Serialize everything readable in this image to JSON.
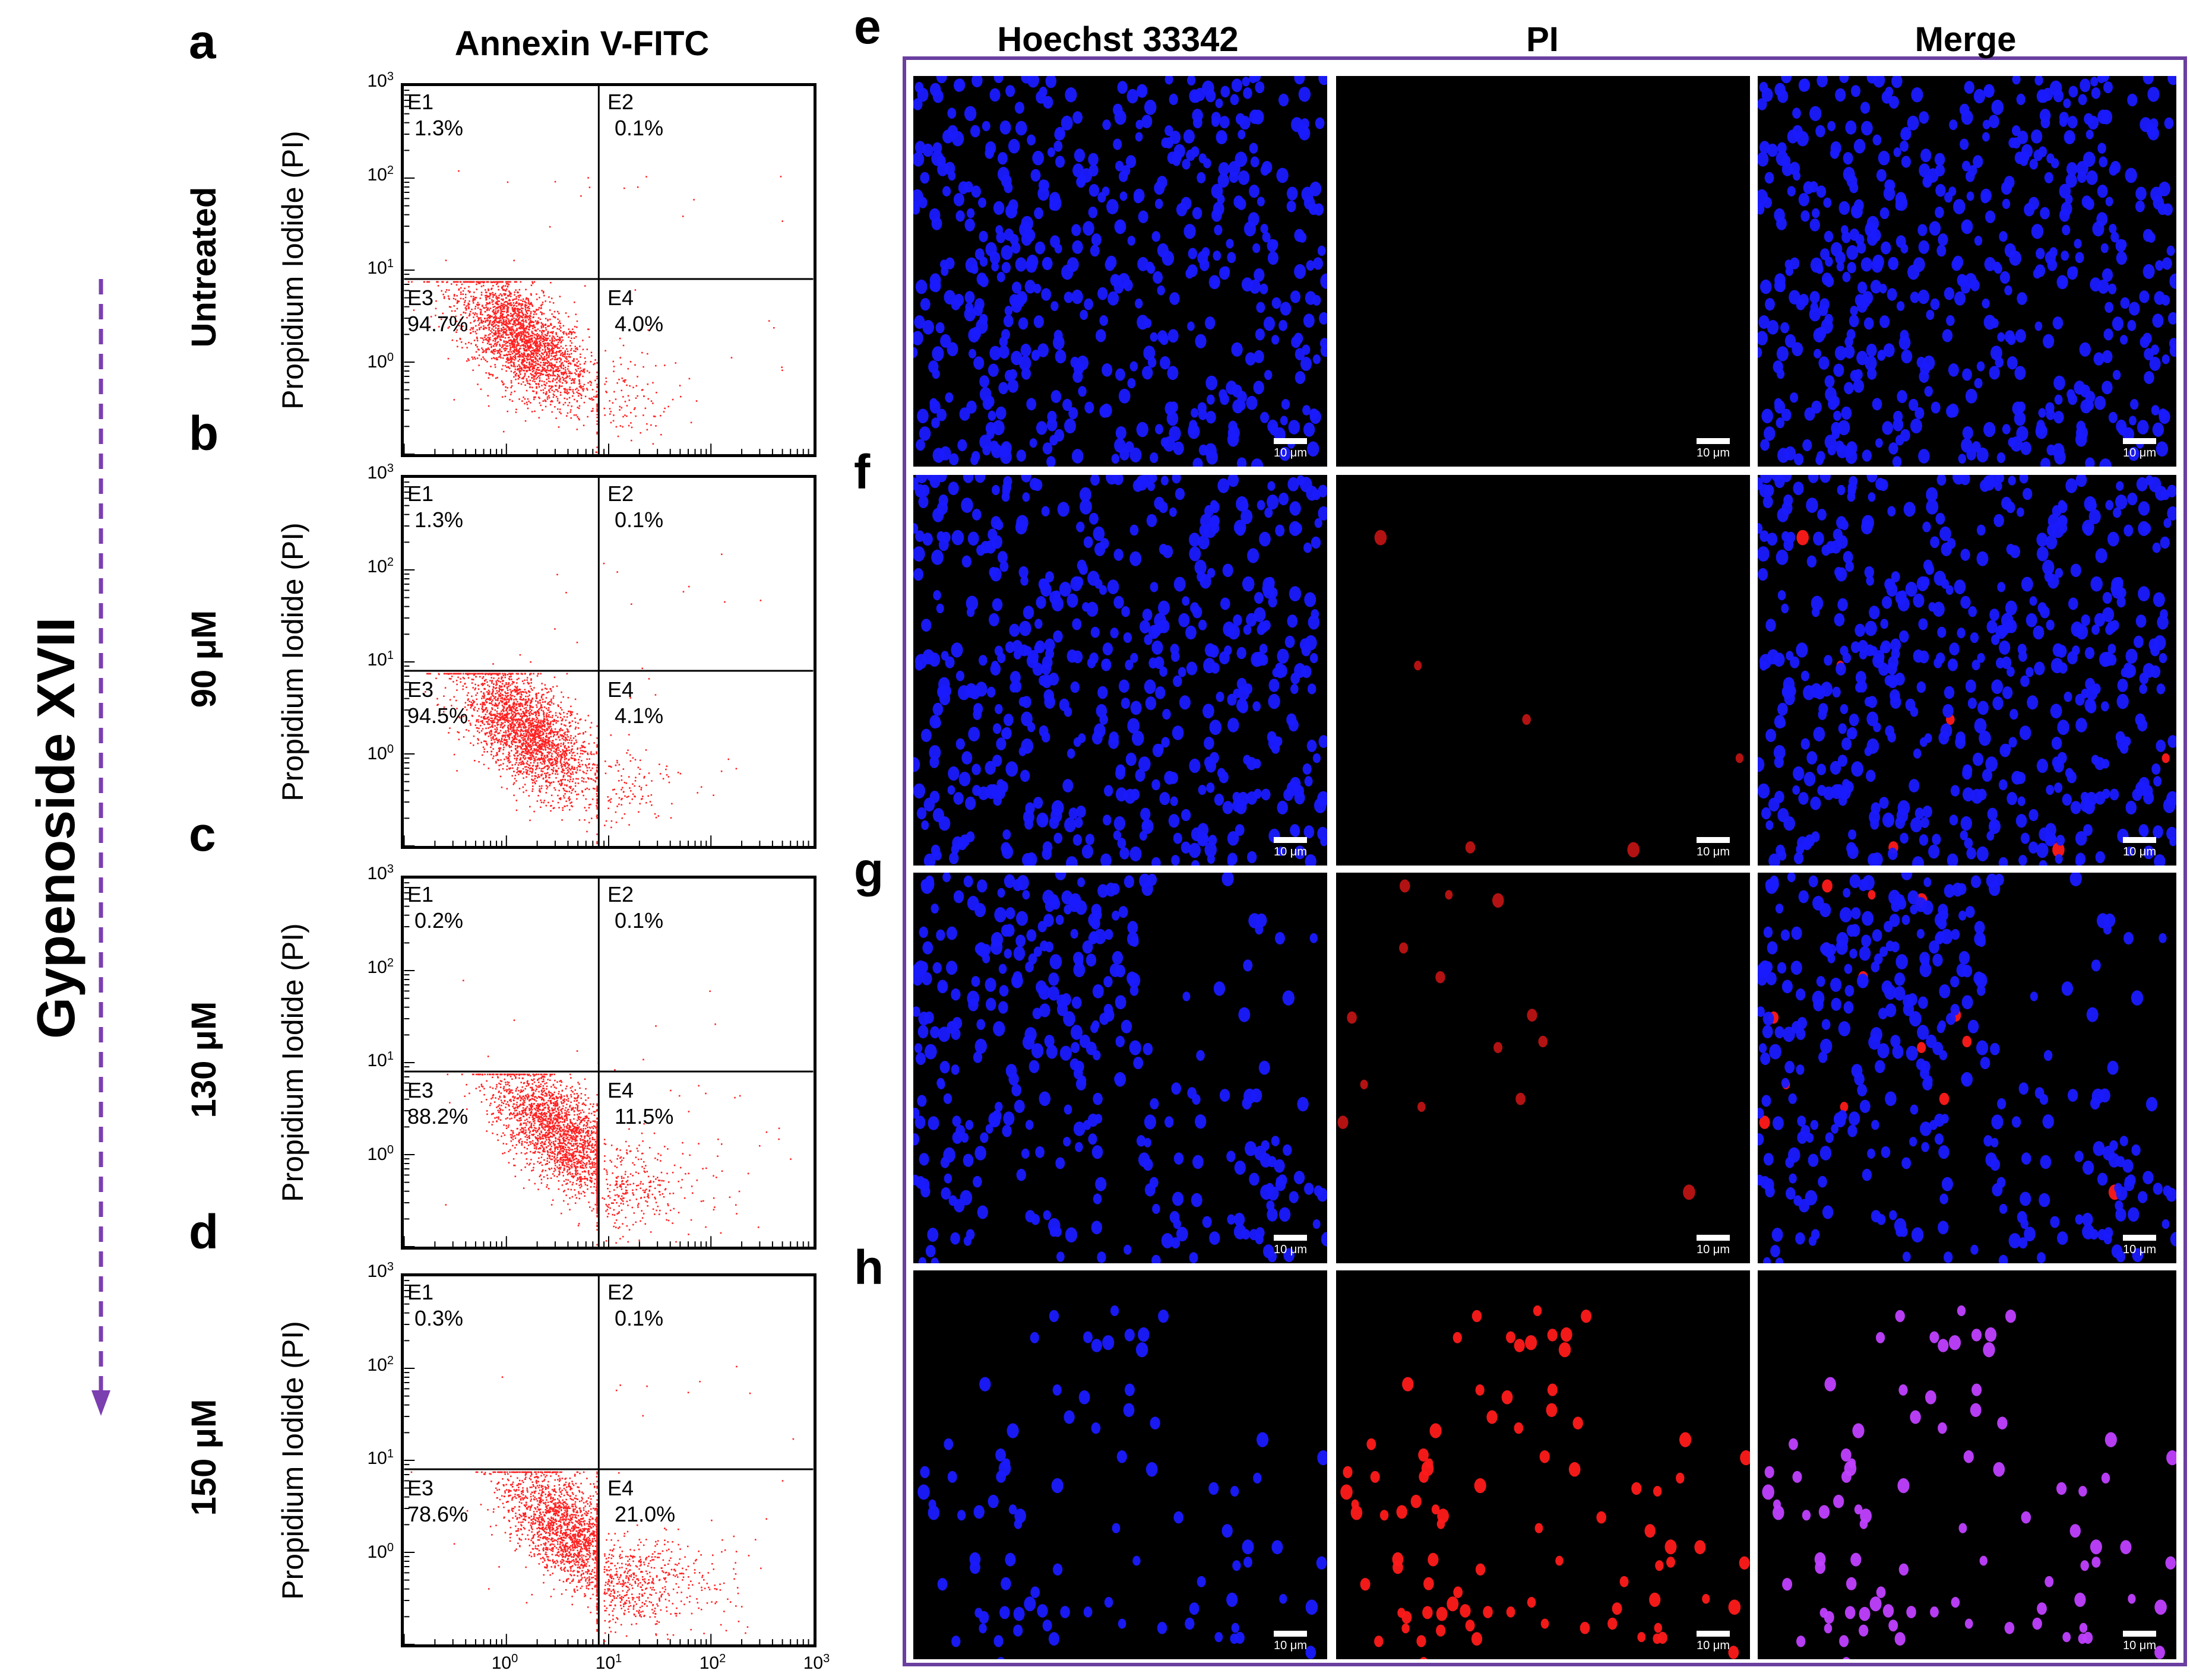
{
  "labels": {
    "flow_title": "Annexin V-FITC",
    "y_axis": "Propidium Iodide (PI)",
    "treatment": "Gypenoside XVII",
    "micro_columns": [
      "Hoechst 33342",
      "PI",
      "Merge"
    ],
    "scale_bar": "10 μm"
  },
  "colors": {
    "frame": "#6a3fa0",
    "dots": "#ff2020",
    "hoechst": "#1a1aff",
    "pi": "#ff1a1a",
    "merge_late": "#c040ff"
  },
  "axis_ticks": {
    "y_base": [
      "10",
      "10",
      "10",
      "10"
    ],
    "y_exp": [
      "3",
      "2",
      "1",
      "0"
    ],
    "x_base": [
      "10",
      "10",
      "10",
      "10"
    ],
    "x_exp": [
      "0",
      "1",
      "2",
      "3"
    ]
  },
  "panels": [
    {
      "letter": "a",
      "condition": "Untreated",
      "quadrants": {
        "E1": "1.3%",
        "E2": "0.1%",
        "E3": "94.7%",
        "E4": "4.0%"
      },
      "micro_letter": "e"
    },
    {
      "letter": "b",
      "condition": "90 μM",
      "quadrants": {
        "E1": "1.3%",
        "E2": "0.1%",
        "E3": "94.5%",
        "E4": "4.1%"
      },
      "micro_letter": "f"
    },
    {
      "letter": "c",
      "condition": "130 μM",
      "quadrants": {
        "E1": "0.2%",
        "E2": "0.1%",
        "E3": "88.2%",
        "E4": "11.5%"
      },
      "micro_letter": "g"
    },
    {
      "letter": "d",
      "condition": "150 μM",
      "quadrants": {
        "E1": "0.3%",
        "E2": "0.1%",
        "E3": "78.6%",
        "E4": "21.0%"
      },
      "micro_letter": "h"
    }
  ],
  "chart_data": [
    {
      "type": "scatter",
      "title": "Annexin V-FITC",
      "ylabel": "Propidium Iodide (PI)",
      "xlim": [
        0.1,
        1000
      ],
      "ylim": [
        0.1,
        1000
      ],
      "scale": "log",
      "quadrant_gate": {
        "x": 8,
        "y": 8
      },
      "quadrant_percent": {
        "E1": 1.3,
        "E2": 0.1,
        "E3": 94.7,
        "E4": 4.0
      }
    },
    {
      "type": "scatter",
      "title": "Annexin V-FITC",
      "ylabel": "Propidium Iodide (PI)",
      "xlim": [
        0.1,
        1000
      ],
      "ylim": [
        0.1,
        1000
      ],
      "scale": "log",
      "quadrant_gate": {
        "x": 8,
        "y": 8
      },
      "quadrant_percent": {
        "E1": 1.3,
        "E2": 0.1,
        "E3": 94.5,
        "E4": 4.1
      }
    },
    {
      "type": "scatter",
      "title": "Annexin V-FITC",
      "ylabel": "Propidium Iodide (PI)",
      "xlim": [
        0.1,
        1000
      ],
      "ylim": [
        0.1,
        1000
      ],
      "scale": "log",
      "quadrant_gate": {
        "x": 8,
        "y": 8
      },
      "quadrant_percent": {
        "E1": 0.2,
        "E2": 0.1,
        "E3": 88.2,
        "E4": 11.5
      }
    },
    {
      "type": "scatter",
      "title": "Annexin V-FITC",
      "ylabel": "Propidium Iodide (PI)",
      "xlim": [
        0.1,
        1000
      ],
      "ylim": [
        0.1,
        1000
      ],
      "scale": "log",
      "quadrant_gate": {
        "x": 8,
        "y": 8
      },
      "quadrant_percent": {
        "E1": 0.3,
        "E2": 0.1,
        "E3": 78.6,
        "E4": 21.0
      }
    }
  ]
}
